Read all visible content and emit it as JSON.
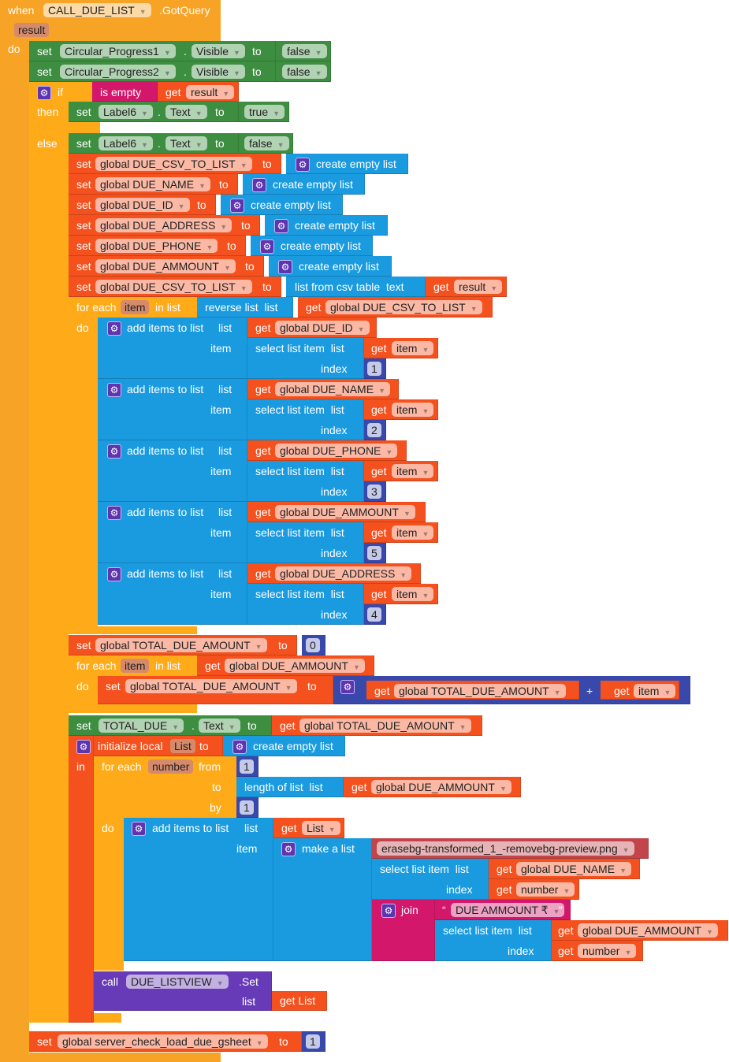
{
  "event": {
    "when": "when",
    "component": "CALL_DUE_LIST",
    "event_name": ".GotQuery",
    "param": "result",
    "do": "do"
  },
  "common": {
    "set": "set",
    "to": "to",
    "get": "get",
    "dot": ".",
    "add_items": "add items to list",
    "list": "list",
    "item": "item",
    "index": "index",
    "select_list_item": "select list item  list",
    "create_empty_list": "create empty list",
    "for_each": "for each",
    "in_list": "in list",
    "do": "do"
  },
  "progress": [
    {
      "component": "Circular_Progress1",
      "property": "Visible",
      "value": "false"
    },
    {
      "component": "Circular_Progress2",
      "property": "Visible",
      "value": "false"
    }
  ],
  "if_block": {
    "if": "if",
    "then": "then",
    "else": "else",
    "is_empty": "is empty",
    "var": "result",
    "then_set": {
      "component": "Label6",
      "property": "Text",
      "value": "true"
    },
    "else_set": {
      "component": "Label6",
      "property": "Text",
      "value": "false"
    }
  },
  "globals_init": [
    "global DUE_CSV_TO_LIST",
    "global DUE_NAME",
    "global DUE_ID",
    "global DUE_ADDRESS",
    "global DUE_PHONE",
    "global DUE_AMMOUNT"
  ],
  "csv_set": {
    "var": "global DUE_CSV_TO_LIST",
    "func": "list from csv table  text",
    "arg": "result"
  },
  "foreach1": {
    "var": "item",
    "reverse": "reverse list  list",
    "source": "global DUE_CSV_TO_LIST",
    "adds": [
      {
        "list": "global DUE_ID",
        "index": "1"
      },
      {
        "list": "global DUE_NAME",
        "index": "2"
      },
      {
        "list": "global DUE_PHONE",
        "index": "3"
      },
      {
        "list": "global DUE_AMMOUNT",
        "index": "5"
      },
      {
        "list": "global DUE_ADDRESS",
        "index": "4"
      }
    ]
  },
  "total_init": {
    "var": "global TOTAL_DUE_AMOUNT",
    "value": "0"
  },
  "foreach2": {
    "var": "item",
    "source": "global DUE_AMMOUNT",
    "set_var": "global TOTAL_DUE_AMOUNT",
    "lhs": "global TOTAL_DUE_AMOUNT",
    "op": "+",
    "rhs": "item"
  },
  "total_label": {
    "component": "TOTAL_DUE",
    "property": "Text",
    "var": "global TOTAL_DUE_AMOUNT"
  },
  "local": {
    "label": "initialize local",
    "name": "List",
    "in": "in"
  },
  "for_range": {
    "var": "number",
    "from_label": "from",
    "from": "1",
    "to_label": "to",
    "length": "length of list  list",
    "length_var": "global DUE_AMMOUNT",
    "by_label": "by",
    "by": "1",
    "list_var": "List",
    "make_list": "make a list",
    "image": "erasebg-transformed_1_-removebg-preview.png",
    "name_var": "global DUE_NAME",
    "index_var": "number",
    "join": "join",
    "open_quote": "“",
    "close_quote": "”",
    "text": "DUE AMMOUNT ₹",
    "amount_var": "global DUE_AMMOUNT"
  },
  "call": {
    "call": "call",
    "component": "DUE_LISTVIEW",
    "method": ".Set",
    "list": "list",
    "arg": "get List"
  },
  "server": {
    "var": "global server_check_load_due_gsheet",
    "value": "1"
  }
}
